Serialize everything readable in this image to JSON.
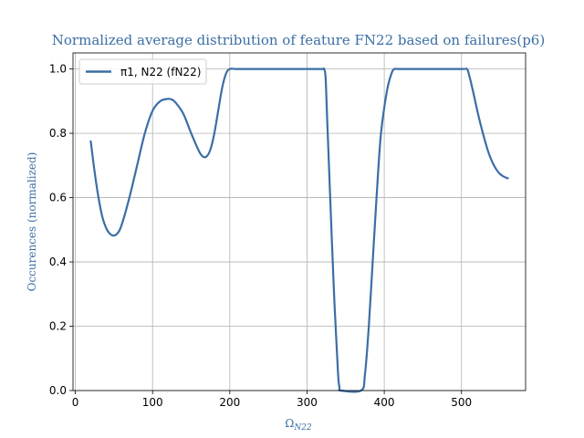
{
  "chart_data": {
    "type": "line",
    "title": "Normalized average distribution of feature FN22 based on failures(p6)",
    "xlabel_main": "Ω",
    "xlabel_sub": "N22",
    "ylabel": "Occurences (normalized)",
    "xlim": [
      -3,
      583
    ],
    "ylim": [
      0,
      1.05
    ],
    "xticks": [
      0,
      100,
      200,
      300,
      400,
      500
    ],
    "yticks": [
      0.0,
      0.2,
      0.4,
      0.6,
      0.8,
      1.0
    ],
    "xtick_labels": [
      "0",
      "100",
      "200",
      "300",
      "400",
      "500"
    ],
    "ytick_labels": [
      "0.0",
      "0.2",
      "0.4",
      "0.6",
      "0.8",
      "1.0"
    ],
    "grid": true,
    "legend_position": "top-left",
    "series": [
      {
        "legend_label": "π1, N22 (fN22)",
        "color": "#3b6ea5",
        "x": [
          20,
          25,
          30,
          35,
          40,
          45,
          50,
          55,
          60,
          70,
          80,
          90,
          100,
          110,
          120,
          125,
          130,
          140,
          150,
          160,
          165,
          170,
          175,
          180,
          185,
          190,
          195,
          200,
          210,
          250,
          300,
          320,
          322,
          324,
          326,
          330,
          335,
          340,
          342,
          344,
          370,
          375,
          380,
          385,
          390,
          395,
          400,
          405,
          410,
          413,
          416,
          420,
          450,
          500,
          507,
          510,
          515,
          520,
          525,
          530,
          535,
          540,
          545,
          550,
          555,
          560
        ],
        "y": [
          0.775,
          0.68,
          0.6,
          0.54,
          0.505,
          0.487,
          0.482,
          0.49,
          0.515,
          0.6,
          0.7,
          0.8,
          0.87,
          0.9,
          0.907,
          0.905,
          0.895,
          0.86,
          0.8,
          0.745,
          0.728,
          0.728,
          0.75,
          0.8,
          0.87,
          0.94,
          0.985,
          1.0,
          1.0,
          1.0,
          1.0,
          1.0,
          1.0,
          0.975,
          0.85,
          0.6,
          0.3,
          0.06,
          0.01,
          0.0,
          0.0,
          0.05,
          0.2,
          0.4,
          0.6,
          0.78,
          0.88,
          0.95,
          0.99,
          1.0,
          1.0,
          1.0,
          1.0,
          1.0,
          1.0,
          0.98,
          0.93,
          0.875,
          0.825,
          0.78,
          0.74,
          0.71,
          0.688,
          0.673,
          0.665,
          0.66
        ]
      }
    ]
  }
}
